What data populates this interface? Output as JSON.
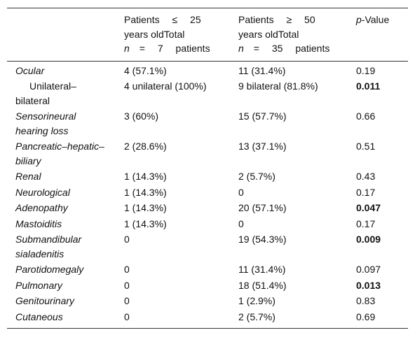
{
  "table": {
    "header": [
      {
        "line1": "Patients ≤ 25",
        "line2": "years oldTotal",
        "var": "n",
        "line3": "= 7 patients"
      },
      {
        "line1": "Patients ≥ 50",
        "line2": "years oldTotal",
        "var": "n",
        "line3": "= 35 patients"
      },
      {
        "var": "p",
        "line3": "-Value"
      }
    ],
    "rows": [
      {
        "label": "Ocular",
        "c1": "4 (57.1%)",
        "c2": "11 (31.4%)",
        "p": "0.19"
      },
      {
        "label": "Unilateral–bilateral",
        "c1": "4 unilateral (100%)",
        "c2": "9 bilateral (81.8%)",
        "p": "0.011",
        "sub": true,
        "bold": true
      },
      {
        "label": "Sensorineural hearing loss",
        "c1": "3 (60%)",
        "c2": "15 (57.7%)",
        "p": "0.66"
      },
      {
        "label": "Pancreatic–hepatic–biliary",
        "c1": "2 (28.6%)",
        "c2": "13 (37.1%)",
        "p": "0.51"
      },
      {
        "label": "Renal",
        "c1": "1 (14.3%)",
        "c2": "2 (5.7%)",
        "p": "0.43"
      },
      {
        "label": "Neurological",
        "c1": "1 (14.3%)",
        "c2": "0",
        "p": "0.17"
      },
      {
        "label": "Adenopathy",
        "c1": "1 (14.3%)",
        "c2": "20 (57.1%)",
        "p": "0.047",
        "bold": true
      },
      {
        "label": "Mastoiditis",
        "c1": "1 (14.3%)",
        "c2": "0",
        "p": "0.17"
      },
      {
        "label": "Submandibular sialadenitis",
        "c1": "0",
        "c2": "19 (54.3%)",
        "p": "0.009",
        "bold": true
      },
      {
        "label": "Parotidomegaly",
        "c1": "0",
        "c2": "11 (31.4%)",
        "p": "0.097"
      },
      {
        "label": "Pulmonary",
        "c1": "0",
        "c2": "18 (51.4%)",
        "p": "0.013",
        "bold": true
      },
      {
        "label": "Genitourinary",
        "c1": "0",
        "c2": "1 (2.9%)",
        "p": "0.83"
      },
      {
        "label": "Cutaneous",
        "c1": "0",
        "c2": "2 (5.7%)",
        "p": "0.69"
      }
    ]
  }
}
